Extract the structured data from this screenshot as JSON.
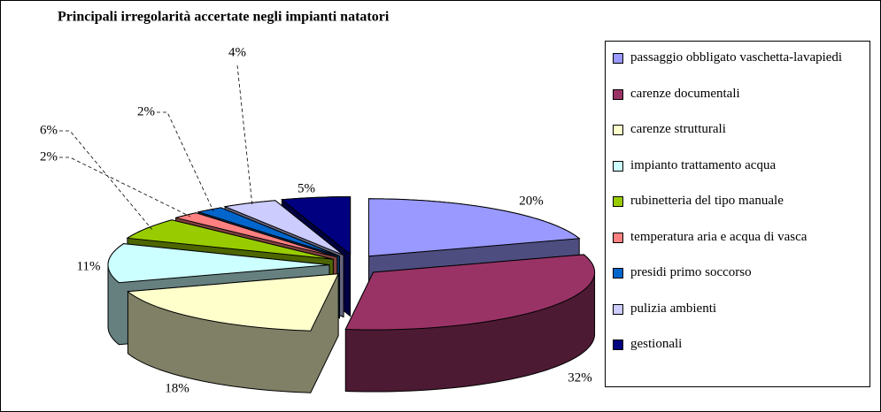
{
  "chart_data": {
    "type": "pie",
    "title": "Principali irregolarità accertate negli impianti natatori",
    "categories": [
      "passaggio obbligato vaschetta-lavapiedi",
      "carenze documentali",
      "carenze strutturali",
      "impianto trattamento acqua",
      "rubinetteria del tipo manuale",
      "temperatura aria e acqua di vasca",
      "presidi primo soccorso",
      "pulizia ambienti",
      "gestionali"
    ],
    "values": [
      20,
      32,
      18,
      11,
      6,
      2,
      2,
      4,
      5
    ],
    "value_labels": [
      "20%",
      "32%",
      "18%",
      "11%",
      "6%",
      "2%",
      "2%",
      "4%",
      "5%"
    ],
    "colors": [
      "#9999ff",
      "#993366",
      "#ffffcc",
      "#ccffff",
      "#99cc00",
      "#ff8080",
      "#0066cc",
      "#ccccff",
      "#000080"
    ],
    "legend": "right"
  }
}
